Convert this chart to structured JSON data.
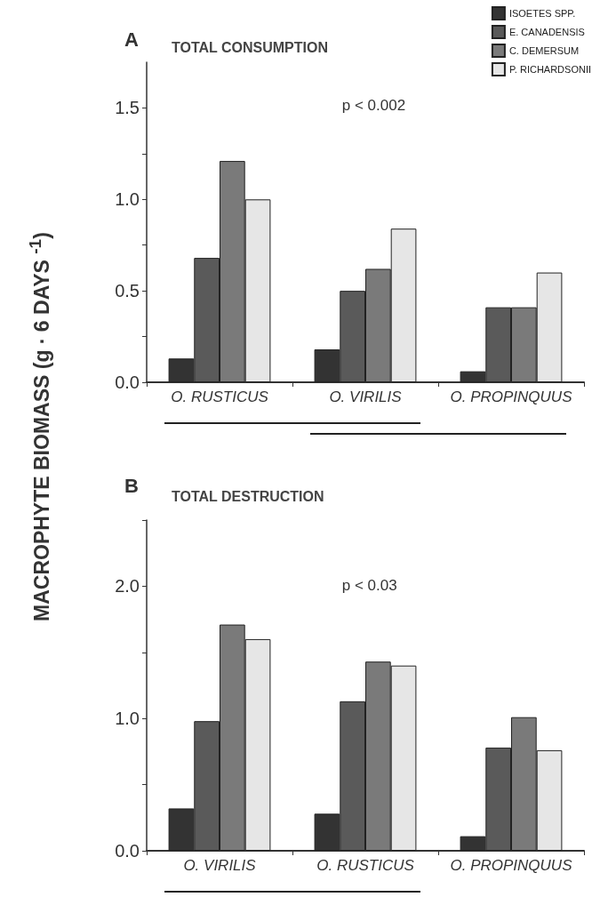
{
  "chart_data": [
    {
      "type": "bar",
      "title": "A",
      "subtitle": "TOTAL CONSUMPTION",
      "ylabel": "MACROPHYTE BIOMASS (g · 6 DAYS $^{-1}$)",
      "annotations": [
        "p < 0.002"
      ],
      "categories": [
        "O. RUSTICUS",
        "O. VIRILIS",
        "O. PROPINQUUS"
      ],
      "series": [
        {
          "name": "ISOETES SPP.",
          "color": "#333333",
          "values": [
            0.13,
            0.18,
            0.06
          ]
        },
        {
          "name": "E. CANADENSIS",
          "color": "#5a5a5a",
          "values": [
            0.68,
            0.5,
            0.41
          ]
        },
        {
          "name": "C. DEMERSUM",
          "color": "#7a7a7a",
          "values": [
            1.21,
            0.62,
            0.41
          ]
        },
        {
          "name": "P. RICHARDSONII",
          "color": "#e6e6e6",
          "values": [
            1.0,
            0.84,
            0.6
          ]
        }
      ],
      "ylim": [
        0,
        1.75
      ],
      "yticks": [
        {
          "value": 0,
          "label": "0.0"
        },
        {
          "value": 0.25,
          "label": null
        },
        {
          "value": 0.5,
          "label": "0.5"
        },
        {
          "value": 0.75,
          "label": null
        },
        {
          "value": 1,
          "label": "1.0"
        },
        {
          "value": 1.25,
          "label": null
        },
        {
          "value": 1.5,
          "label": "1.5"
        }
      ],
      "grid": false,
      "legend": "top right"
    },
    {
      "type": "bar",
      "title": "B",
      "subtitle": "TOTAL DESTRUCTION",
      "annotations": [
        "p < 0.03"
      ],
      "categories": [
        "O. VIRILIS",
        "O. RUSTICUS",
        "O. PROPINQUUS"
      ],
      "series": [
        {
          "color": "#333333",
          "values": [
            0.32,
            0.28,
            0.11
          ]
        },
        {
          "color": "#5a5a5a",
          "values": [
            0.98,
            1.13,
            0.78
          ]
        },
        {
          "color": "#7a7a7a",
          "values": [
            1.71,
            1.43,
            1.01
          ]
        },
        {
          "color": "#e6e6e6",
          "values": [
            1.6,
            1.4,
            0.76
          ]
        }
      ],
      "ylim": [
        0,
        2.5
      ],
      "yticks": [
        {
          "value": 0,
          "label": "0.0"
        },
        {
          "value": 0.5,
          "label": null
        },
        {
          "value": 1,
          "label": "1.0"
        },
        {
          "value": 1.5,
          "label": null
        },
        {
          "value": 2,
          "label": "2.0"
        },
        {
          "value": 2.5,
          "label": null
        }
      ],
      "grid": false
    }
  ]
}
